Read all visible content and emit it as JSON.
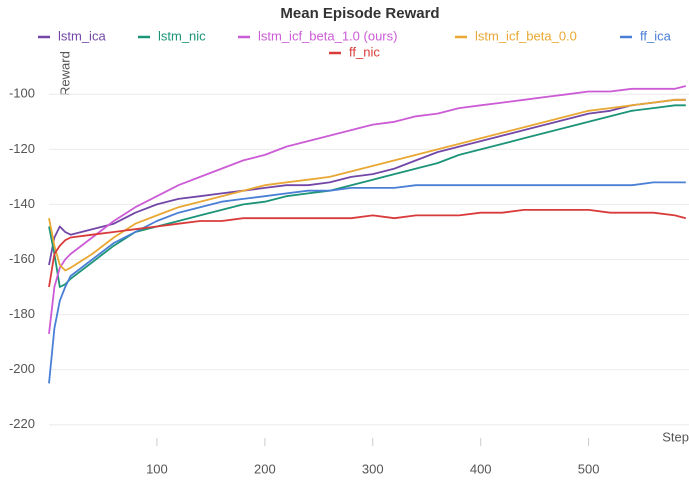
{
  "chart_data": {
    "type": "line",
    "title": "Mean Episode Reward",
    "x_label": "Step",
    "y_label": "Reward",
    "x": [
      0,
      5,
      10,
      15,
      20,
      40,
      60,
      80,
      100,
      120,
      140,
      160,
      180,
      200,
      220,
      240,
      260,
      280,
      300,
      320,
      340,
      360,
      380,
      400,
      420,
      440,
      460,
      480,
      500,
      520,
      540,
      560,
      580,
      590
    ],
    "series": [
      {
        "name": "lstm_ica",
        "color": "#7347a8",
        "values": [
          -162,
          -152,
          -148,
          -150,
          -151,
          -149,
          -147,
          -143,
          -140,
          -138,
          -137,
          -136,
          -135,
          -134,
          -133,
          -133,
          -132,
          -130,
          -129,
          -127,
          -124,
          -121,
          -119,
          -117,
          -115,
          -113,
          -111,
          -109,
          -107,
          -106,
          -104,
          -103,
          -102,
          -102
        ]
      },
      {
        "name": "lstm_nic",
        "color": "#1b9478",
        "values": [
          -148,
          -158,
          -170,
          -169,
          -167,
          -161,
          -155,
          -150,
          -148,
          -146,
          -144,
          -142,
          -140,
          -139,
          -137,
          -136,
          -135,
          -133,
          -131,
          -129,
          -127,
          -125,
          -122,
          -120,
          -118,
          -116,
          -114,
          -112,
          -110,
          -108,
          -106,
          -105,
          -104,
          -104
        ]
      },
      {
        "name": "lstm_icf_beta_1.0 (ours)",
        "color": "#cc5cd6",
        "values": [
          -187,
          -170,
          -163,
          -160,
          -158,
          -152,
          -146,
          -141,
          -137,
          -133,
          -130,
          -127,
          -124,
          -122,
          -119,
          -117,
          -115,
          -113,
          -111,
          -110,
          -108,
          -107,
          -105,
          -104,
          -103,
          -102,
          -101,
          -100,
          -99,
          -99,
          -98,
          -98,
          -98,
          -97
        ]
      },
      {
        "name": "lstm_icf_beta_0.0",
        "color": "#e8a833",
        "values": [
          -145,
          -155,
          -162,
          -164,
          -163,
          -158,
          -152,
          -147,
          -144,
          -141,
          -139,
          -137,
          -135,
          -133,
          -132,
          -131,
          -130,
          -128,
          -126,
          -124,
          -122,
          -120,
          -118,
          -116,
          -114,
          -112,
          -110,
          -108,
          -106,
          -105,
          -104,
          -103,
          -102,
          -102
        ]
      },
      {
        "name": "ff_ica",
        "color": "#4a7fd6",
        "values": [
          -205,
          -185,
          -175,
          -170,
          -166,
          -160,
          -154,
          -150,
          -146,
          -143,
          -141,
          -139,
          -138,
          -137,
          -136,
          -135,
          -135,
          -134,
          -134,
          -134,
          -133,
          -133,
          -133,
          -133,
          -133,
          -133,
          -133,
          -133,
          -133,
          -133,
          -133,
          -132,
          -132,
          -132
        ]
      },
      {
        "name": "ff_nic",
        "color": "#d93b3b",
        "values": [
          -170,
          -158,
          -155,
          -153,
          -152,
          -151,
          -150,
          -149,
          -148,
          -147,
          -146,
          -146,
          -145,
          -145,
          -145,
          -145,
          -145,
          -145,
          -144,
          -145,
          -144,
          -144,
          -144,
          -143,
          -143,
          -142,
          -142,
          -142,
          -142,
          -143,
          -143,
          -143,
          -144,
          -145
        ]
      }
    ],
    "xlim": [
      0,
      593
    ],
    "ylim": [
      -227,
      -89
    ],
    "xticks": [
      100,
      200,
      300,
      400,
      500
    ],
    "yticks": [
      -220,
      -200,
      -180,
      -160,
      -140,
      -120,
      -100
    ],
    "grid": true,
    "legend": "top"
  }
}
